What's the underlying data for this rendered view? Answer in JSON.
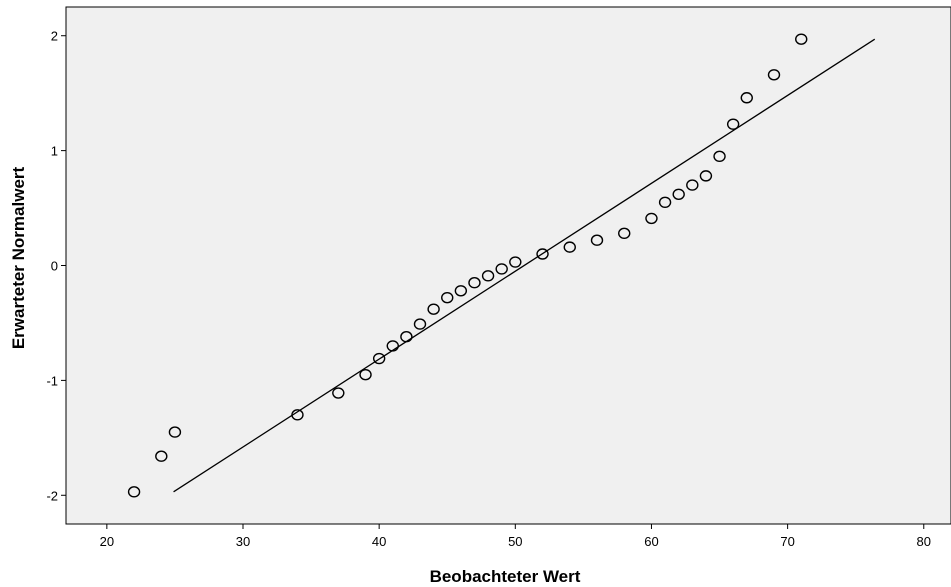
{
  "chart_data": {
    "type": "scatter",
    "title": "",
    "xlabel": "Beobachteter Wert",
    "ylabel": "Erwarteter Normalwert",
    "xlim": [
      17,
      82
    ],
    "ylim": [
      -2.25,
      2.25
    ],
    "xticks": [
      20,
      30,
      40,
      50,
      60,
      70,
      80
    ],
    "yticks": [
      -2,
      -1,
      0,
      1,
      2
    ],
    "grid": false,
    "legend": "none",
    "plot_background": "#f0f0f0",
    "marker_style": "open-circle",
    "points": [
      [
        22,
        -1.97
      ],
      [
        24,
        -1.66
      ],
      [
        25,
        -1.45
      ],
      [
        34,
        -1.3
      ],
      [
        37,
        -1.11
      ],
      [
        39,
        -0.95
      ],
      [
        40,
        -0.81
      ],
      [
        41,
        -0.7
      ],
      [
        42,
        -0.62
      ],
      [
        43,
        -0.51
      ],
      [
        44,
        -0.38
      ],
      [
        45,
        -0.28
      ],
      [
        46,
        -0.22
      ],
      [
        47,
        -0.15
      ],
      [
        48,
        -0.09
      ],
      [
        49,
        -0.03
      ],
      [
        50,
        0.03
      ],
      [
        52,
        0.1
      ],
      [
        54,
        0.16
      ],
      [
        56,
        0.22
      ],
      [
        58,
        0.28
      ],
      [
        60,
        0.41
      ],
      [
        61,
        0.55
      ],
      [
        62,
        0.62
      ],
      [
        63,
        0.7
      ],
      [
        64,
        0.78
      ],
      [
        65,
        0.95
      ],
      [
        66,
        1.23
      ],
      [
        67,
        1.46
      ],
      [
        69,
        1.66
      ],
      [
        71,
        1.97
      ]
    ],
    "reference_line": {
      "from": [
        24.9,
        -1.97
      ],
      "to": [
        76.4,
        1.97
      ]
    }
  }
}
